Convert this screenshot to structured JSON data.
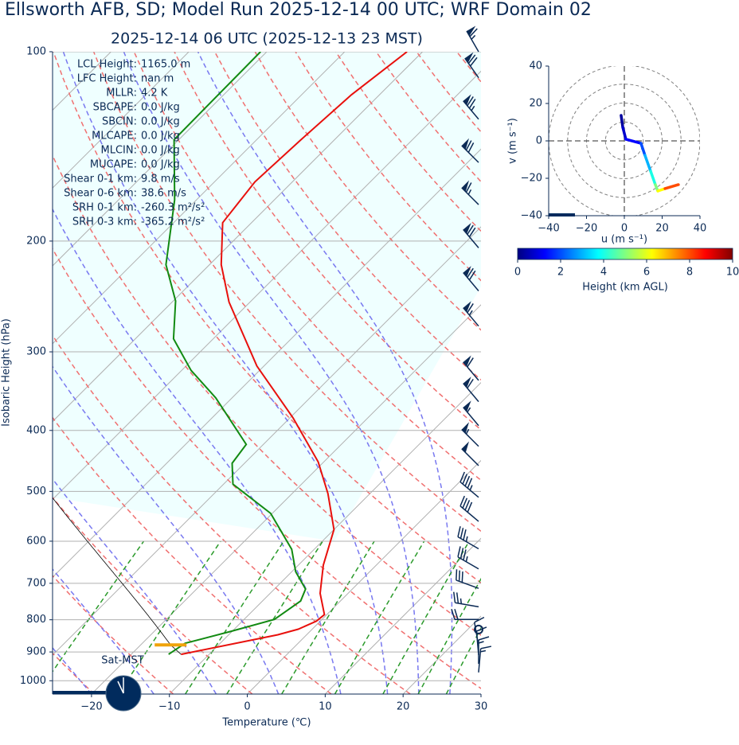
{
  "chart_data": [
    {
      "type": "skewt",
      "title": "Ellsworth AFB, SD; Model Run 2025-12-14 00 UTC; WRF Domain 02",
      "subtitle": "2025-12-14 06 UTC  (2025-12-13 23 MST)",
      "xlabel": "Temperature (℃)",
      "ylabel": "Isobaric Height (hPa)",
      "xlim": [
        -25,
        30
      ],
      "ylim": [
        1050,
        100
      ],
      "log_y": true,
      "xticks": [
        {
          "value": -20,
          "label": "−20"
        },
        {
          "value": -10,
          "label": "−10"
        },
        0,
        10,
        20,
        30
      ],
      "yticks": [
        100,
        200,
        300,
        400,
        500,
        600,
        700,
        800,
        900,
        1000
      ],
      "grid": true,
      "series": [
        {
          "color": "#e8100c",
          "pressure": [
            908,
            845,
            828,
            804,
            785,
            726,
            655,
            575,
            504,
            449,
            382,
            316,
            250,
            218,
            187,
            161,
            138,
            117,
            100
          ],
          "values": [
            -13.6,
            -3.7,
            -1.8,
            -0.5,
            -0.3,
            -3.6,
            -6.8,
            -10.0,
            -15.4,
            -20.7,
            -29.6,
            -40.9,
            -52.7,
            -58.5,
            -63.7,
            -64.8,
            -64.3,
            -63.6,
            -62.0
          ]
        },
        {
          "color": "#128a12",
          "pressure": [
            908,
            872,
            835,
            799,
            747,
            715,
            671,
            618,
            542,
            487,
            451,
            421,
            355,
            321,
            286,
            249,
            218,
            172,
            138,
            100
          ],
          "values": [
            -15.2,
            -14.5,
            -10.2,
            -6.1,
            -5.1,
            -6.0,
            -9.5,
            -12.9,
            -20.2,
            -28.8,
            -31.6,
            -32.2,
            -42.1,
            -48.8,
            -55.1,
            -59.7,
            -65.6,
            -72.8,
            -80.6,
            -80.8
          ]
        }
      ],
      "lcl_pressure": 877,
      "lcl_color": "#f0a30a",
      "barbs": {
        "color": "#0b2a55",
        "pressure": [
          100,
          110,
          128,
          150,
          175,
          205,
          240,
          273,
          333,
          360,
          393,
          424,
          455,
          511,
          558,
          617,
          664,
          713,
          763,
          799,
          829,
          880,
          910,
          940,
          970
        ],
        "speed": [
          65,
          70,
          75,
          70,
          65,
          70,
          70,
          65,
          60,
          60,
          55,
          55,
          50,
          45,
          40,
          35,
          35,
          30,
          25,
          20,
          0,
          10,
          10,
          15,
          15
        ],
        "direction": [
          330,
          325,
          320,
          315,
          315,
          320,
          320,
          320,
          320,
          320,
          320,
          315,
          315,
          310,
          310,
          300,
          300,
          290,
          280,
          270,
          0,
          350,
          355,
          0,
          5
        ]
      },
      "annotations": [
        {
          "label": "LCL Height:",
          "value": "1165.0 m"
        },
        {
          "label": "LFC Height:",
          "value": "nan m"
        },
        {
          "label": "MLLR:",
          "value": "4.2 K"
        },
        {
          "label": "SBCAPE:",
          "value": "0.0 J/kg"
        },
        {
          "label": "SBCIN:",
          "value": "0.0 J/kg"
        },
        {
          "label": "MLCAPE:",
          "value": "0.0 J/kg"
        },
        {
          "label": "MLCIN:",
          "value": "0.0 J/kg"
        },
        {
          "label": "MUCAPE:",
          "value": "0.0 J/kg"
        },
        {
          "label": "Shear 0-1 km:",
          "value": "9.8 m/s"
        },
        {
          "label": "Shear 0-6 km:",
          "value": "38.6 m/s"
        },
        {
          "label": "SRH 0-1 km:",
          "value": "-260.3 m²/s²"
        },
        {
          "label": "SRH 0-3 km:",
          "value": "-365.2 m²/s²"
        }
      ],
      "clock_label": "Sat-MST"
    },
    {
      "type": "hodograph",
      "xlabel": "u (m s⁻¹)",
      "ylabel": "v (m s⁻¹)",
      "xlim": [
        -40,
        40
      ],
      "ylim": [
        -40,
        40
      ],
      "xticks": [
        {
          "value": -40,
          "label": "−40"
        },
        {
          "value": -20,
          "label": "−20"
        },
        0,
        20,
        40
      ],
      "yticks": [
        {
          "value": -40,
          "label": "−40"
        },
        {
          "value": -20,
          "label": "−20"
        },
        0,
        20,
        40
      ],
      "rings": [
        10,
        20,
        30,
        40
      ],
      "u": [
        -1.7,
        -0.8,
        0.8,
        8.8,
        10.9,
        13.9,
        16.4,
        17.7,
        21.5,
        28.6
      ],
      "v": [
        13.6,
        7.2,
        0.9,
        -1.3,
        -7.7,
        -16.2,
        -23.4,
        -26.8,
        -25.5,
        -23.4
      ],
      "height": [
        0.1,
        0.5,
        1.0,
        1.5,
        2.5,
        3.5,
        4.5,
        5.5,
        7.0,
        9.0
      ],
      "colorbar": {
        "label": "Height (km AGL)",
        "lim": [
          0,
          10
        ],
        "ticks": [
          0,
          2,
          4,
          6,
          8,
          10
        ],
        "colormap": "jet"
      }
    }
  ]
}
